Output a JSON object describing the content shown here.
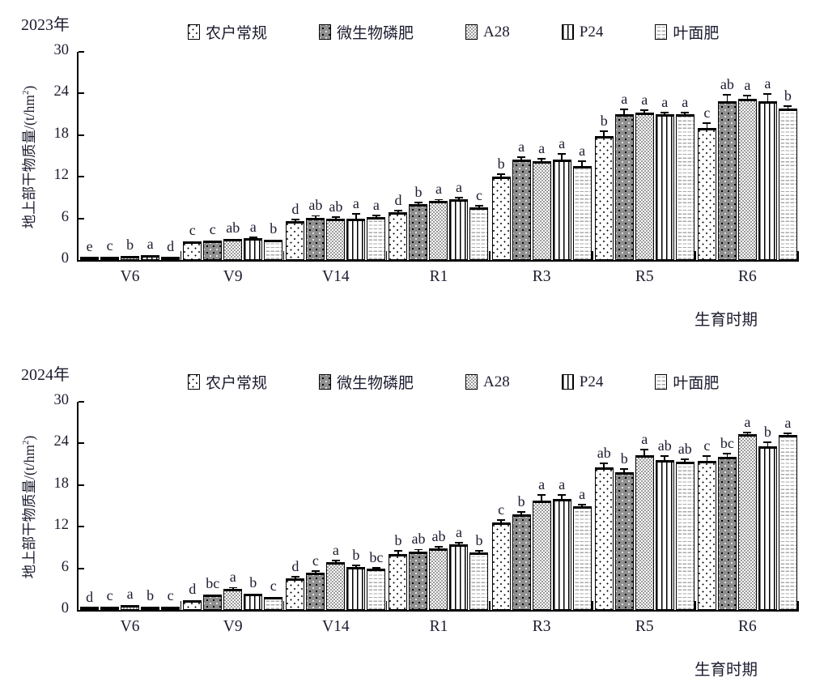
{
  "page": {
    "background": "#ffffff",
    "text_color": "#1b1b2f",
    "bar_outline": "#000000"
  },
  "chart_data": [
    {
      "type": "bar",
      "title": "2023年",
      "xlabel": "生育时期",
      "ylabel": "地上部干物质量/(t/hm²)",
      "ylabel_parts": {
        "prefix": "地上部干物质量/(t/hm",
        "sup": "2",
        "suffix": ")"
      },
      "ylim": [
        0,
        30
      ],
      "yticks": [
        0,
        6,
        12,
        18,
        24,
        30
      ],
      "grid": false,
      "legend_position": "top",
      "categories": [
        "V6",
        "V9",
        "V14",
        "R1",
        "R3",
        "R5",
        "R6"
      ],
      "series": [
        {
          "name": "农户常规",
          "pattern": "dots-sparse",
          "values": [
            0.4,
            2.7,
            5.6,
            6.9,
            12.0,
            17.9,
            19.0
          ],
          "errors": [
            0,
            0,
            0.15,
            0.1,
            0.25,
            0.55,
            0.6
          ],
          "letters": [
            "e",
            "c",
            "d",
            "d",
            "b",
            "b",
            "c"
          ]
        },
        {
          "name": "微生物磷肥",
          "pattern": "dots-dark",
          "values": [
            0.5,
            2.8,
            6.1,
            8.1,
            14.5,
            21.0,
            22.9
          ],
          "errors": [
            0,
            0,
            0.15,
            0.1,
            0.2,
            0.6,
            0.8
          ],
          "letters": [
            "c",
            "c",
            "ab",
            "b",
            "a",
            "a",
            "ab"
          ]
        },
        {
          "name": "A28",
          "pattern": "checker",
          "values": [
            0.6,
            3.0,
            6.0,
            8.5,
            14.3,
            21.3,
            23.2
          ],
          "errors": [
            0,
            0,
            0.1,
            0.1,
            0.2,
            0.2,
            0.4
          ],
          "letters": [
            "b",
            "ab",
            "ab",
            "a",
            "a",
            "a",
            "a"
          ]
        },
        {
          "name": "P24",
          "pattern": "vlines",
          "values": [
            0.65,
            3.1,
            6.0,
            8.8,
            14.5,
            21.0,
            22.9
          ],
          "errors": [
            0,
            0.1,
            0.55,
            0.1,
            0.65,
            0.1,
            0.9
          ],
          "letters": [
            "a",
            "a",
            "a",
            "a",
            "a",
            "a",
            "a"
          ]
        },
        {
          "name": "叶面肥",
          "pattern": "hdash",
          "values": [
            0.35,
            2.9,
            6.2,
            7.6,
            13.6,
            21.0,
            21.8
          ],
          "errors": [
            0,
            0,
            0.1,
            0.15,
            0.5,
            0.1,
            0.3
          ],
          "letters": [
            "d",
            "b",
            "a",
            "c",
            "a",
            "a",
            "b"
          ]
        }
      ]
    },
    {
      "type": "bar",
      "title": "2024年",
      "xlabel": "生育时期",
      "ylabel": "地上部干物质量/(t/hm²)",
      "ylabel_parts": {
        "prefix": "地上部干物质量/(t/hm",
        "sup": "2",
        "suffix": ")"
      },
      "ylim": [
        0,
        30
      ],
      "yticks": [
        0,
        6,
        12,
        18,
        24,
        30
      ],
      "grid": false,
      "legend_position": "top",
      "categories": [
        "V6",
        "V9",
        "V14",
        "R1",
        "R3",
        "R5",
        "R6"
      ],
      "series": [
        {
          "name": "农户常规",
          "pattern": "dots-sparse",
          "values": [
            0.25,
            1.4,
            4.5,
            8.0,
            12.6,
            20.5,
            21.5
          ],
          "errors": [
            0,
            0,
            0.15,
            0.45,
            0.3,
            0.5,
            0.6
          ],
          "letters": [
            "d",
            "d",
            "d",
            "b",
            "c",
            "ab",
            "c"
          ]
        },
        {
          "name": "微生物磷肥",
          "pattern": "dots-dark",
          "values": [
            0.5,
            2.2,
            5.4,
            8.4,
            13.8,
            19.9,
            22.1
          ],
          "errors": [
            0,
            0,
            0.1,
            0.2,
            0.25,
            0.3,
            0.3
          ],
          "letters": [
            "c",
            "bc",
            "c",
            "ab",
            "b",
            "b",
            "bc"
          ]
        },
        {
          "name": "A28",
          "pattern": "checker",
          "values": [
            0.7,
            3.0,
            6.9,
            8.9,
            15.8,
            22.3,
            25.3
          ],
          "errors": [
            0,
            0.1,
            0.15,
            0.1,
            0.7,
            0.7,
            0.2
          ],
          "letters": [
            "a",
            "a",
            "a",
            "ab",
            "a",
            "a",
            "a"
          ]
        },
        {
          "name": "P24",
          "pattern": "vlines",
          "values": [
            0.5,
            2.3,
            6.2,
            9.5,
            16.0,
            21.6,
            23.6
          ],
          "errors": [
            0,
            0,
            0.1,
            0.1,
            0.45,
            0.5,
            0.45
          ],
          "letters": [
            "b",
            "b",
            "b",
            "a",
            "a",
            "ab",
            "b"
          ]
        },
        {
          "name": "叶面肥",
          "pattern": "hdash",
          "values": [
            0.45,
            1.9,
            5.9,
            8.3,
            14.9,
            21.4,
            25.2
          ],
          "errors": [
            0,
            0,
            0.1,
            0.15,
            0.2,
            0.2,
            0.1
          ],
          "letters": [
            "c",
            "c",
            "bc",
            "b",
            "a",
            "ab",
            "a"
          ]
        }
      ]
    }
  ]
}
